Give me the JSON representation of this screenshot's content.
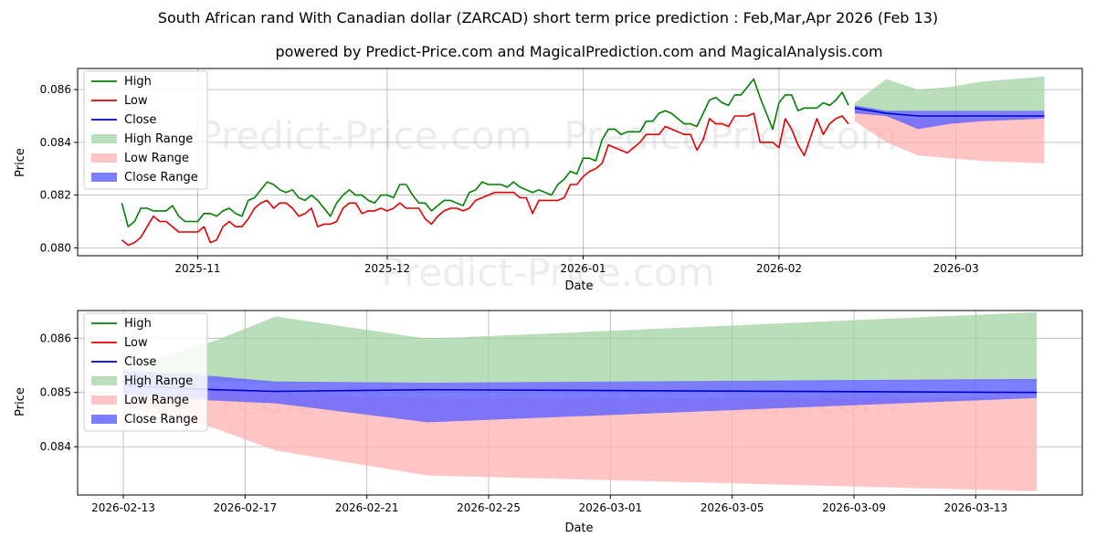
{
  "title": "South African rand With Canadian dollar (ZARCAD) short term price prediction : Feb,Mar,Apr 2026 (Feb 13)",
  "subtitle": "powered by Predict-Price.com and MagicalPrediction.com and MagicalAnalysis.com",
  "watermark": "Predict-Price.com",
  "colors": {
    "high": "#008000",
    "low": "#e00000",
    "close": "#0000cc",
    "high_range": "#a3d3a3",
    "low_range": "#ffb0b0",
    "close_range": "#6666ff"
  },
  "chart_data": [
    {
      "type": "line",
      "xlabel": "Date",
      "ylabel": "Price",
      "x_start": "2025-10-20",
      "ylim": [
        0.0797,
        0.0868
      ],
      "y_ticks": [
        0.08,
        0.082,
        0.084,
        0.086
      ],
      "y_tick_labels": [
        "0.080",
        "0.082",
        "0.084",
        "0.086"
      ],
      "x_ticks": [
        12,
        42,
        73,
        104,
        132
      ],
      "x_tick_labels": [
        "2025-11",
        "2025-12",
        "2026-01",
        "2026-02",
        "2026-03"
      ],
      "xlim": [
        -7,
        152
      ],
      "legend": {
        "position": "top-left",
        "entries": [
          "High",
          "Low",
          "Close",
          "High Range",
          "Low Range",
          "Close Range"
        ]
      },
      "series": [
        {
          "name": "High",
          "day_start": 0,
          "values": [
            0.0817,
            0.0808,
            0.081,
            0.0815,
            0.0815,
            0.0814,
            0.0814,
            0.0814,
            0.0816,
            0.0812,
            0.081,
            0.081,
            0.081,
            0.0813,
            0.0813,
            0.0812,
            0.0814,
            0.0815,
            0.0813,
            0.0812,
            0.0818,
            0.0819,
            0.0822,
            0.0825,
            0.0824,
            0.0822,
            0.0821,
            0.0822,
            0.0819,
            0.0818,
            0.082,
            0.0818,
            0.0815,
            0.0812,
            0.0817,
            0.082,
            0.0822,
            0.082,
            0.082,
            0.0818,
            0.0817,
            0.082,
            0.082,
            0.0819,
            0.0824,
            0.0824,
            0.082,
            0.0817,
            0.0817,
            0.0814,
            0.0816,
            0.0818,
            0.0818,
            0.0817,
            0.0816,
            0.0821,
            0.0822,
            0.0825,
            0.0824,
            0.0824,
            0.0824,
            0.0823,
            0.0825,
            0.0823,
            0.0822,
            0.0821,
            0.0822,
            0.0821,
            0.082,
            0.0824,
            0.0826,
            0.0829,
            0.0828,
            0.0834,
            0.0834,
            0.0833,
            0.0841,
            0.0845,
            0.0845,
            0.0843,
            0.0844,
            0.0844,
            0.0844,
            0.0848,
            0.0848,
            0.0851,
            0.0852,
            0.0851,
            0.0849,
            0.0847,
            0.0847,
            0.0846,
            0.0851,
            0.0856,
            0.0857,
            0.0855,
            0.0854,
            0.0858,
            0.0858,
            0.0861,
            0.0864,
            0.0857,
            0.0851,
            0.0845,
            0.0855,
            0.0858,
            0.0858,
            0.0852,
            0.0853,
            0.0853,
            0.0853,
            0.0855,
            0.0854,
            0.0856,
            0.0859,
            0.0854
          ]
        },
        {
          "name": "Low",
          "day_start": 0,
          "values": [
            0.0803,
            0.0801,
            0.0802,
            0.0804,
            0.0808,
            0.0812,
            0.081,
            0.081,
            0.0808,
            0.0806,
            0.0806,
            0.0806,
            0.0806,
            0.0808,
            0.0802,
            0.0803,
            0.0808,
            0.081,
            0.0808,
            0.0808,
            0.0811,
            0.0815,
            0.0817,
            0.0818,
            0.0815,
            0.0817,
            0.0817,
            0.0815,
            0.0812,
            0.0813,
            0.0815,
            0.0808,
            0.0809,
            0.0809,
            0.081,
            0.0815,
            0.0817,
            0.0817,
            0.0813,
            0.0814,
            0.0814,
            0.0815,
            0.0814,
            0.0815,
            0.0817,
            0.0815,
            0.0815,
            0.0815,
            0.0811,
            0.0809,
            0.0812,
            0.0814,
            0.0815,
            0.0815,
            0.0814,
            0.0815,
            0.0818,
            0.0819,
            0.082,
            0.0821,
            0.0821,
            0.0821,
            0.0821,
            0.0819,
            0.0819,
            0.0813,
            0.0818,
            0.0818,
            0.0818,
            0.0818,
            0.0819,
            0.0824,
            0.0824,
            0.0827,
            0.0829,
            0.083,
            0.0832,
            0.0839,
            0.0838,
            0.0837,
            0.0836,
            0.0838,
            0.084,
            0.0843,
            0.0843,
            0.0843,
            0.0846,
            0.0845,
            0.0844,
            0.0843,
            0.0843,
            0.0837,
            0.0841,
            0.0849,
            0.0847,
            0.0847,
            0.0846,
            0.085,
            0.085,
            0.085,
            0.0851,
            0.084,
            0.084,
            0.084,
            0.0838,
            0.0849,
            0.0845,
            0.0839,
            0.0835,
            0.0842,
            0.0849,
            0.0843,
            0.0847,
            0.0849,
            0.085,
            0.0847
          ]
        },
        {
          "name": "Close",
          "day_start": 116,
          "values": [
            0.0853,
            0.0851,
            0.085,
            0.085,
            0.085,
            0.085
          ]
        },
        {
          "name": "High Range",
          "band": true,
          "day_start": 116,
          "upper": [
            0.0855,
            0.0864,
            0.086,
            0.0861,
            0.0863,
            0.0865
          ],
          "lower": [
            0.0852,
            0.0851,
            0.0852,
            0.0852,
            0.0852,
            0.0852
          ]
        },
        {
          "name": "Low Range",
          "band": true,
          "day_start": 116,
          "upper": [
            0.0852,
            0.085,
            0.0849,
            0.0849,
            0.0849,
            0.0849
          ],
          "lower": [
            0.0848,
            0.084,
            0.0835,
            0.0834,
            0.0833,
            0.0832
          ]
        },
        {
          "name": "Close Range",
          "band": true,
          "day_start": 116,
          "upper": [
            0.0854,
            0.0852,
            0.0852,
            0.0852,
            0.0852,
            0.0852
          ],
          "lower": [
            0.0851,
            0.085,
            0.0845,
            0.0847,
            0.0848,
            0.0849
          ]
        }
      ],
      "forecast_days": [
        116,
        121,
        126,
        131,
        136,
        146
      ]
    },
    {
      "type": "line",
      "xlabel": "Date",
      "ylabel": "Price",
      "ylim": [
        0.08311,
        0.08651
      ],
      "y_ticks": [
        0.084,
        0.085,
        0.086
      ],
      "y_tick_labels": [
        "0.084",
        "0.085",
        "0.086"
      ],
      "x_tick_days": [
        0,
        4,
        8,
        12,
        16,
        20,
        24,
        28
      ],
      "x_tick_labels": [
        "2026-02-13",
        "2026-02-17",
        "2026-02-21",
        "2026-02-25",
        "2026-03-01",
        "2026-03-05",
        "2026-03-09",
        "2026-03-13"
      ],
      "xlim": [
        -1.5,
        31.5
      ],
      "legend": {
        "position": "top-left",
        "entries": [
          "High",
          "Low",
          "Close",
          "High Range",
          "Low Range",
          "Close Range"
        ]
      },
      "days": [
        0,
        3,
        5,
        10,
        30
      ],
      "series": [
        {
          "name": "Close",
          "values": [
            0.08513,
            0.08505,
            0.08502,
            0.08505,
            0.085
          ]
        },
        {
          "name": "High Range",
          "band": true,
          "upper": [
            0.08545,
            0.08595,
            0.0864,
            0.08599,
            0.08648
          ],
          "lower": [
            0.08527,
            0.0852,
            0.08517,
            0.08518,
            0.08522
          ]
        },
        {
          "name": "Low Range",
          "band": true,
          "upper": [
            0.0851,
            0.08505,
            0.08499,
            0.0849,
            0.0849
          ],
          "lower": [
            0.08474,
            0.08434,
            0.08393,
            0.08347,
            0.08318
          ]
        },
        {
          "name": "Close Range",
          "band": true,
          "upper": [
            0.08541,
            0.0853,
            0.0852,
            0.08518,
            0.08525
          ],
          "lower": [
            0.08497,
            0.08485,
            0.0848,
            0.08445,
            0.0849
          ]
        }
      ]
    }
  ]
}
